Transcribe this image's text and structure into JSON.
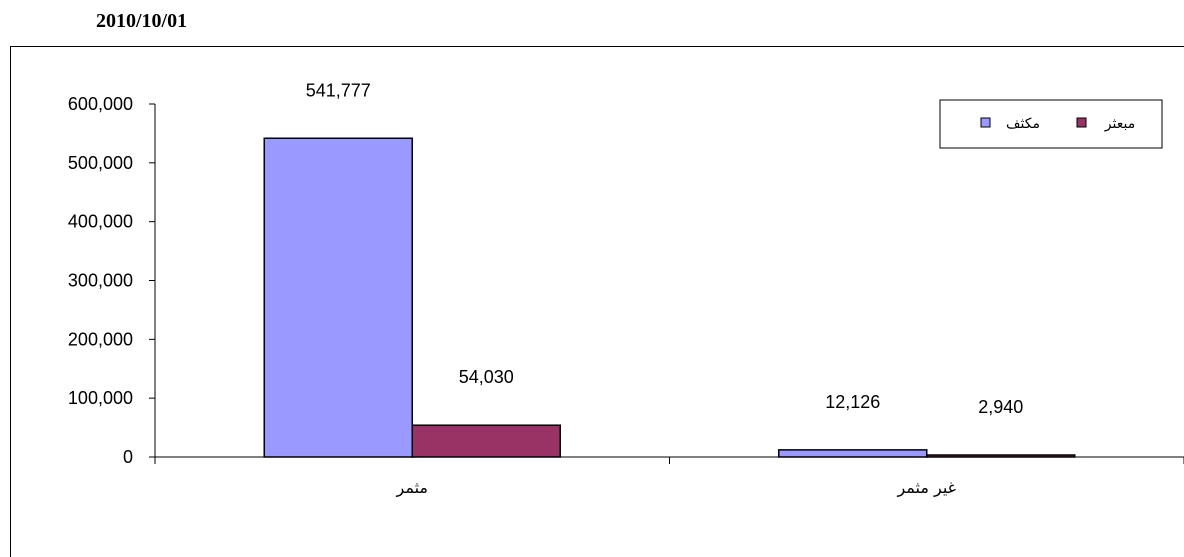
{
  "header": {
    "date": "2010/10/01"
  },
  "chart_data": {
    "type": "bar",
    "categories": [
      "مثمر",
      "غير مثمر"
    ],
    "series": [
      {
        "name": "مكثف",
        "values": [
          541777,
          12126
        ],
        "labels": [
          "541,777",
          "12,126"
        ],
        "color": "#9999ff"
      },
      {
        "name": "مبعثر",
        "values": [
          54030,
          2940
        ],
        "labels": [
          "54,030",
          "2,940"
        ],
        "color": "#993366"
      }
    ],
    "ylim": [
      0,
      600000
    ],
    "yticks": [
      0,
      100000,
      200000,
      300000,
      400000,
      500000,
      600000
    ],
    "ytick_labels": [
      "0",
      "100,000",
      "200,000",
      "300,000",
      "400,000",
      "500,000",
      "600,000"
    ],
    "grid": false,
    "legend": "top-right"
  }
}
